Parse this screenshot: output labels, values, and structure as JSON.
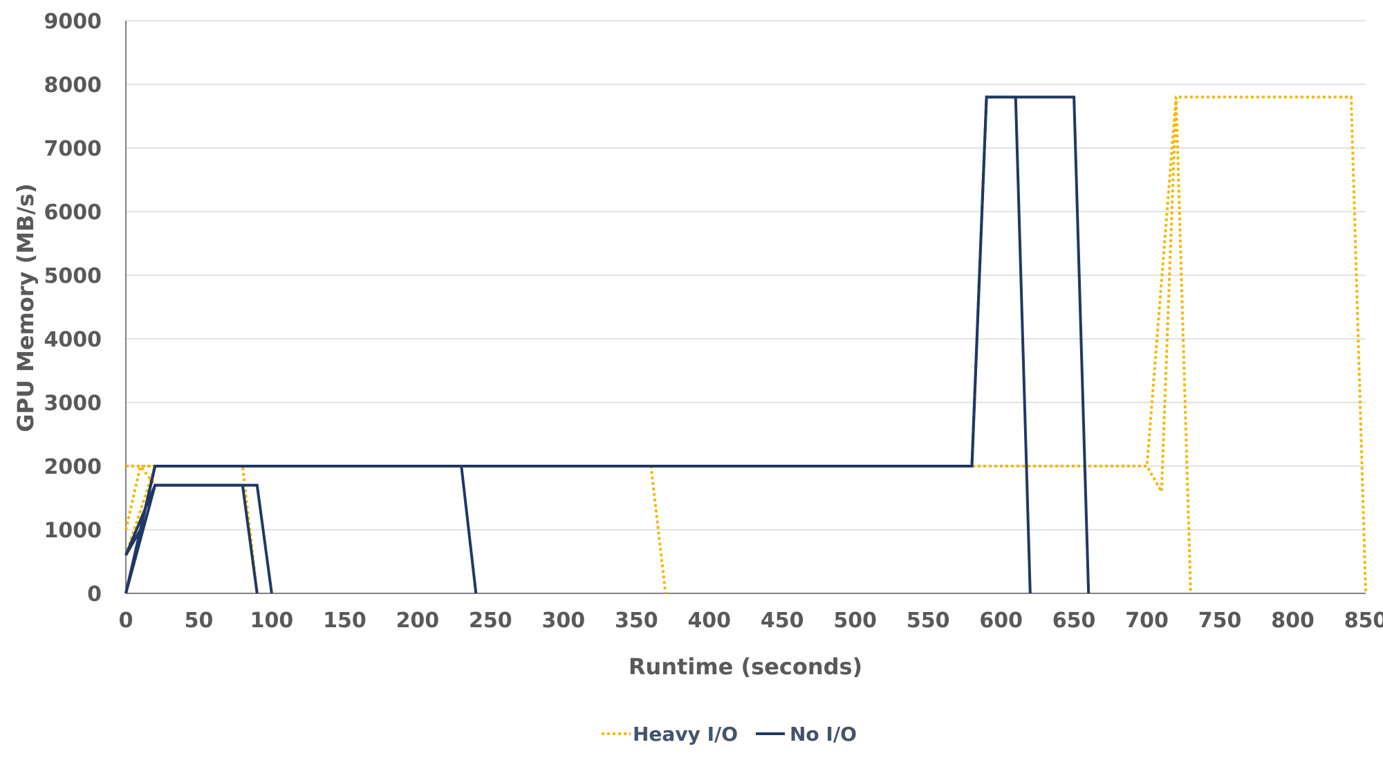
{
  "chart_data": {
    "type": "line",
    "xlabel": "Runtime (seconds)",
    "ylabel": "GPU Memory (MB/s)",
    "xlim": [
      0,
      850
    ],
    "ylim": [
      0,
      9000
    ],
    "x_ticks": [
      0,
      50,
      100,
      150,
      200,
      250,
      300,
      350,
      400,
      450,
      500,
      550,
      600,
      650,
      700,
      750,
      800,
      850
    ],
    "y_ticks": [
      0,
      1000,
      2000,
      3000,
      4000,
      5000,
      6000,
      7000,
      8000,
      9000
    ],
    "grid": "horizontal",
    "legend_position": "bottom",
    "series": [
      {
        "name": "Heavy I/O",
        "color": "#f5b800",
        "style": "dotted",
        "segments": [
          [
            [
              0,
              600
            ],
            [
              10,
              1300
            ],
            [
              20,
              2000
            ],
            [
              80,
              2000
            ],
            [
              90,
              0
            ]
          ],
          [
            [
              0,
              1000
            ],
            [
              10,
              2000
            ],
            [
              360,
              2000
            ],
            [
              370,
              0
            ]
          ],
          [
            [
              0,
              2000
            ],
            [
              700,
              2000
            ],
            [
              710,
              1600
            ],
            [
              720,
              7800
            ],
            [
              730,
              0
            ]
          ],
          [
            [
              0,
              2000
            ],
            [
              10,
              2000
            ],
            [
              20,
              1700
            ],
            [
              80,
              1700
            ],
            [
              90,
              0
            ]
          ],
          [
            [
              0,
              2000
            ],
            [
              700,
              2000
            ],
            [
              720,
              7800
            ],
            [
              840,
              7800
            ],
            [
              850,
              0
            ]
          ]
        ]
      },
      {
        "name": "No I/O",
        "color": "#1f3864",
        "style": "solid",
        "segments": [
          [
            [
              0,
              600
            ],
            [
              10,
              1000
            ],
            [
              20,
              2000
            ],
            [
              230,
              2000
            ],
            [
              240,
              0
            ]
          ],
          [
            [
              0,
              0
            ],
            [
              20,
              1700
            ],
            [
              90,
              1700
            ],
            [
              100,
              0
            ]
          ],
          [
            [
              0,
              0
            ],
            [
              20,
              2000
            ],
            [
              580,
              2000
            ],
            [
              590,
              7800
            ],
            [
              610,
              7800
            ],
            [
              620,
              0
            ]
          ],
          [
            [
              0,
              0
            ],
            [
              20,
              2000
            ],
            [
              580,
              2000
            ],
            [
              590,
              7800
            ],
            [
              650,
              7800
            ],
            [
              660,
              0
            ]
          ],
          [
            [
              0,
              600
            ],
            [
              20,
              1700
            ],
            [
              80,
              1700
            ],
            [
              90,
              0
            ]
          ]
        ]
      }
    ]
  }
}
